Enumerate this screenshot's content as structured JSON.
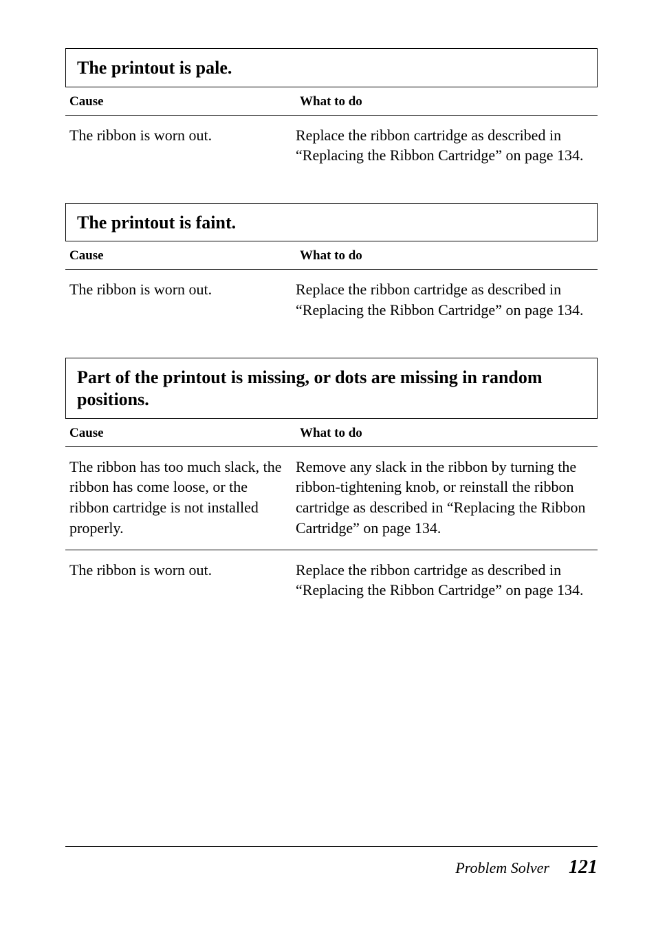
{
  "sections": [
    {
      "title": "The printout is pale.",
      "header_cause": "Cause",
      "header_what": "What to do",
      "rows": [
        {
          "cause": "The ribbon is worn out.",
          "what": "Replace the ribbon cartridge as described in “Replacing the Ribbon Cartridge” on page 134.",
          "divider": false
        }
      ]
    },
    {
      "title": "The printout is faint.",
      "header_cause": "Cause",
      "header_what": "What to do",
      "rows": [
        {
          "cause": "The ribbon is worn out.",
          "what": "Replace the ribbon cartridge as described in “Replacing the Ribbon Cartridge” on page 134.",
          "divider": false
        }
      ]
    },
    {
      "title": "Part of the printout is missing, or dots are missing in random positions.",
      "header_cause": "Cause",
      "header_what": "What to do",
      "rows": [
        {
          "cause": "The ribbon has too much slack, the ribbon has come loose, or the ribbon cartridge is not installed properly.",
          "what": "Remove any slack in the ribbon by turning the ribbon-tightening knob, or reinstall the ribbon cartridge as described in “Replacing the Ribbon Cartridge” on page 134.",
          "divider": true
        },
        {
          "cause": "The ribbon is worn out.",
          "what": "Replace the ribbon cartridge as described in “Replacing the Ribbon Cartridge” on page 134.",
          "divider": false
        }
      ]
    }
  ],
  "footer": {
    "label": "Problem Solver",
    "page": "121"
  }
}
